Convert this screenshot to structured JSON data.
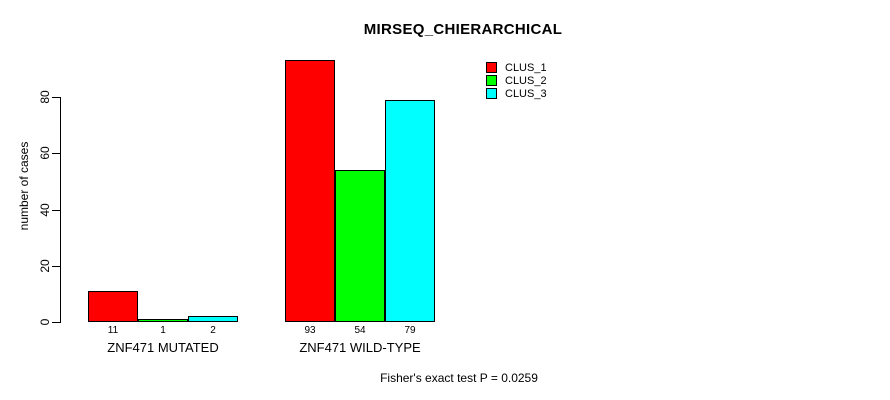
{
  "chart_data": {
    "type": "bar",
    "title": "MIRSEQ_CHIERARCHICAL",
    "ylabel": "number of cases",
    "xlabel": "",
    "ylim": [
      0,
      80
    ],
    "yticks": [
      0,
      20,
      40,
      60,
      80
    ],
    "grid": false,
    "legend_position": "top-right",
    "categories": [
      "ZNF471 MUTATED",
      "ZNF471 WILD-TYPE"
    ],
    "series": [
      {
        "name": "CLUS_1",
        "color": "#ff0000",
        "values": [
          11,
          93
        ]
      },
      {
        "name": "CLUS_2",
        "color": "#00ff00",
        "values": [
          1,
          54
        ]
      },
      {
        "name": "CLUS_3",
        "color": "#00ffff",
        "values": [
          2,
          79
        ]
      }
    ],
    "annotation": "Fisher's exact test P = 0.0259"
  }
}
